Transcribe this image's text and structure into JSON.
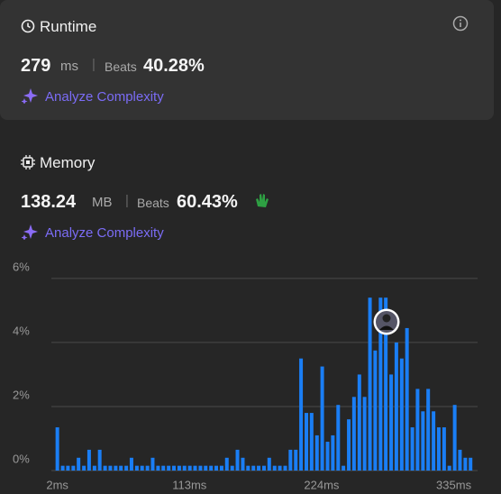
{
  "runtime": {
    "title": "Runtime",
    "value": "279",
    "unit": "ms",
    "beats_label": "Beats",
    "beats": "40.28%",
    "analyze": "Analyze Complexity"
  },
  "memory": {
    "title": "Memory",
    "value": "138.24",
    "unit": "MB",
    "beats_label": "Beats",
    "beats": "60.43%",
    "analyze": "Analyze Complexity"
  },
  "chart_data": {
    "type": "bar",
    "color": "#1a7ef5",
    "x": [
      2,
      6.5,
      10.9,
      15.4,
      19.8,
      24.3,
      28.7,
      33.2,
      37.6,
      42.1,
      46.5,
      51,
      55.4,
      59.9,
      64.3,
      68.8,
      73.2,
      77.7,
      82.1,
      86.6,
      91,
      95.5,
      99.9,
      104.4,
      108.8,
      113.3,
      117.7,
      122.2,
      126.6,
      131.1,
      135.5,
      140,
      144.4,
      148.9,
      153.3,
      157.8,
      162.2,
      166.7,
      171.1,
      175.6,
      180,
      184.5,
      188.9,
      193.4,
      197.8,
      202.3,
      206.7,
      211.2,
      215.6,
      220.1,
      224.5,
      229,
      233.4,
      237.9,
      242.3,
      246.8,
      251.2,
      255.7,
      260.1,
      264.6,
      269,
      273.5,
      277.9,
      282.4,
      286.8,
      291.3,
      295.7,
      300.2,
      304.6,
      309.1,
      313.5,
      318,
      322.4,
      326.9,
      331.3,
      335.8,
      340.2,
      344.7,
      349.1
    ],
    "values": [
      1.35,
      0.15,
      0.15,
      0.15,
      0.4,
      0.15,
      0.65,
      0.15,
      0.65,
      0.15,
      0.15,
      0.15,
      0.15,
      0.15,
      0.4,
      0.15,
      0.15,
      0.15,
      0.4,
      0.15,
      0.15,
      0.15,
      0.15,
      0.15,
      0.15,
      0.15,
      0.15,
      0.15,
      0.15,
      0.15,
      0.15,
      0.15,
      0.4,
      0.15,
      0.65,
      0.4,
      0.15,
      0.15,
      0.15,
      0.15,
      0.4,
      0.15,
      0.15,
      0.15,
      0.65,
      0.65,
      3.5,
      1.8,
      1.8,
      1.1,
      3.25,
      0.9,
      1.1,
      2.05,
      0.15,
      1.6,
      2.3,
      3.0,
      2.3,
      5.4,
      3.75,
      5.4,
      5.4,
      3.0,
      4.0,
      3.5,
      4.45,
      1.35,
      2.55,
      1.85,
      2.55,
      1.85,
      1.35,
      1.35,
      0.15,
      2.05,
      0.65,
      0.4,
      0.4
    ],
    "xlim": [
      0,
      355
    ],
    "xticks": [
      {
        "value": 2,
        "label": "2ms"
      },
      {
        "value": 113,
        "label": "113ms"
      },
      {
        "value": 224,
        "label": "224ms"
      },
      {
        "value": 335,
        "label": "335ms"
      }
    ],
    "ylim": [
      0,
      6.25
    ],
    "yticks": [
      {
        "value": 0,
        "label": "0%"
      },
      {
        "value": 2,
        "label": "2%"
      },
      {
        "value": 4,
        "label": "4%"
      },
      {
        "value": 6,
        "label": "6%"
      }
    ],
    "grid": true
  }
}
